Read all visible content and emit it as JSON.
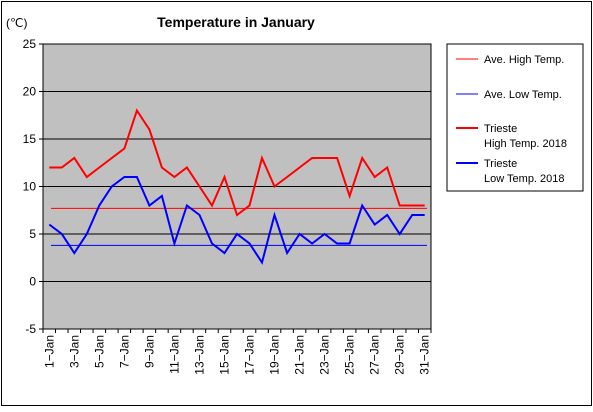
{
  "chart_data": {
    "type": "line",
    "title": "Temperature in January",
    "ylabel": "(℃)",
    "xlabel": "",
    "ylim": [
      -5,
      25
    ],
    "yticks": [
      -5,
      0,
      5,
      10,
      15,
      20,
      25
    ],
    "grid": true,
    "legend_position": "right",
    "x": [
      "1-Jan",
      "2-Jan",
      "3-Jan",
      "4-Jan",
      "5-Jan",
      "6-Jan",
      "7-Jan",
      "8-Jan",
      "9-Jan",
      "10-Jan",
      "11-Jan",
      "12-Jan",
      "13-Jan",
      "14-Jan",
      "15-Jan",
      "16-Jan",
      "17-Jan",
      "18-Jan",
      "19-Jan",
      "20-Jan",
      "21-Jan",
      "22-Jan",
      "23-Jan",
      "24-Jan",
      "25-Jan",
      "26-Jan",
      "27-Jan",
      "28-Jan",
      "29-Jan",
      "30-Jan",
      "31-Jan"
    ],
    "x_tick_labels": [
      "1−Jan",
      "3−Jan",
      "5−Jan",
      "7−Jan",
      "9−Jan",
      "11−Jan",
      "13−Jan",
      "15−Jan",
      "17−Jan",
      "19−Jan",
      "21−Jan",
      "23−Jan",
      "25−Jan",
      "27−Jan",
      "29−Jan",
      "31−Jan"
    ],
    "avg_lines": [
      {
        "name": "Ave. High Temp.",
        "value": 7.7,
        "color": "#ff0000"
      },
      {
        "name": "Ave. Low Temp.",
        "value": 3.8,
        "color": "#0000ff"
      }
    ],
    "series": [
      {
        "name": "Trieste\nHigh Temp. 2018",
        "color": "#ff0000",
        "values": [
          12,
          12,
          13,
          11,
          12,
          13,
          14,
          18,
          16,
          12,
          11,
          12,
          10,
          8,
          11,
          7,
          8,
          13,
          10,
          11,
          12,
          13,
          13,
          13,
          9,
          13,
          11,
          12,
          8,
          8,
          8
        ]
      },
      {
        "name": "Trieste\nLow Temp. 2018",
        "color": "#0000ff",
        "values": [
          6,
          5,
          3,
          5,
          8,
          10,
          11,
          11,
          8,
          9,
          4,
          8,
          7,
          4,
          3,
          5,
          4,
          2,
          7,
          3,
          5,
          4,
          5,
          4,
          4,
          8,
          6,
          7,
          5,
          7,
          7
        ]
      }
    ]
  }
}
